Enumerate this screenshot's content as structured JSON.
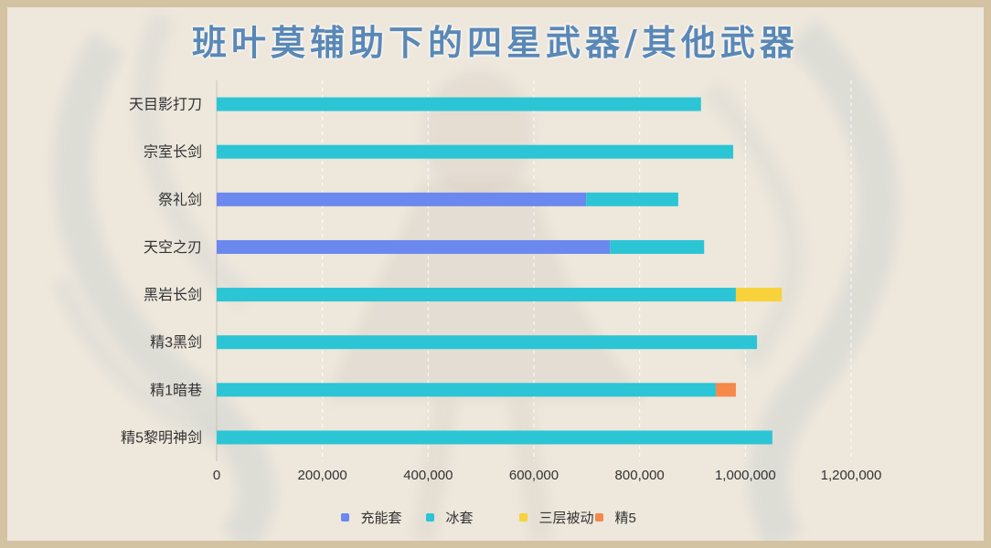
{
  "chart_data": {
    "type": "bar",
    "orientation": "horizontal",
    "stacked": true,
    "title": "班叶莫辅助下的四星武器/其他武器",
    "xlabel": "",
    "ylabel": "",
    "categories": [
      "天目影打刀",
      "宗室长剑",
      "祭礼剑",
      "天空之刃",
      "黑岩长剑",
      "精3黑剑",
      "精1暗巷",
      "精5黎明神剑"
    ],
    "series": [
      {
        "name": "充能套",
        "color": "#6b88ee",
        "values": [
          0,
          0,
          699000,
          744000,
          0,
          0,
          0,
          0
        ]
      },
      {
        "name": "冰套",
        "color": "#2bc5d5",
        "values": [
          916000,
          977000,
          174000,
          178000,
          982000,
          1022000,
          944000,
          1051000
        ]
      },
      {
        "name": "三层被动",
        "color": "#f8d23a",
        "values": [
          0,
          0,
          0,
          0,
          87000,
          0,
          0,
          0
        ]
      },
      {
        "name": "精5",
        "color": "#f4894a",
        "values": [
          0,
          0,
          0,
          0,
          0,
          0,
          38000,
          0
        ]
      }
    ],
    "xlim": [
      0,
      1200000
    ],
    "xticks": [
      0,
      200000,
      400000,
      600000,
      800000,
      1000000,
      1200000
    ],
    "xtick_labels": [
      "0",
      "200,000",
      "400,000",
      "600,000",
      "800,000",
      "1,000,000",
      "1,200,000"
    ],
    "grid": true,
    "legend_position": "bottom"
  },
  "colors": {
    "title": "#5a88b6",
    "frame": "#d3c3a3",
    "background": "#ede7dc",
    "gridline": "#ffffff",
    "text": "#333333"
  }
}
